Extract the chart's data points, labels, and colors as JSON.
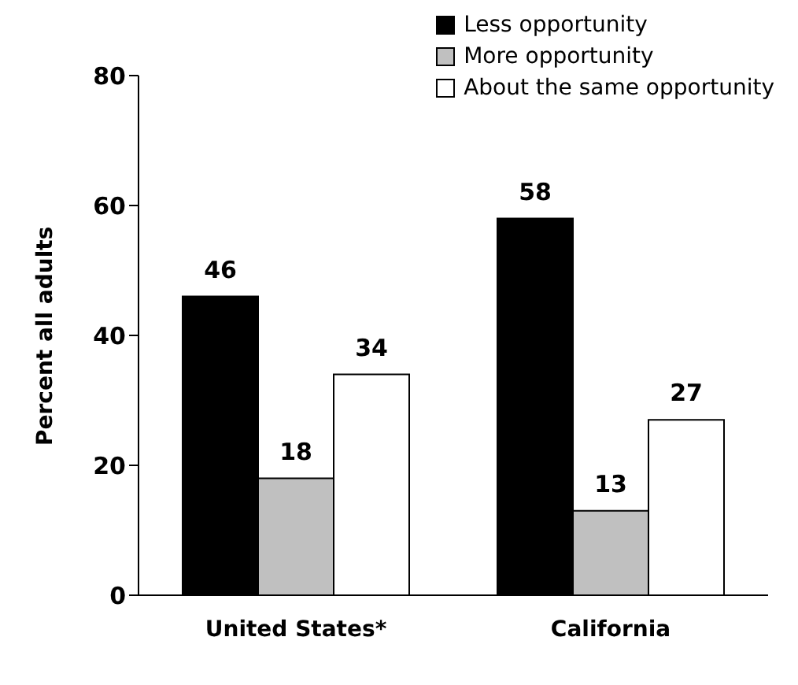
{
  "chart_data": {
    "type": "bar",
    "ylabel": "Percent all adults",
    "categories": [
      "United States*",
      "California"
    ],
    "series": [
      {
        "name": "Less opportunity",
        "color": "#000000",
        "values": [
          46,
          58
        ]
      },
      {
        "name": "More opportunity",
        "color": "#c0c0c0",
        "values": [
          18,
          13
        ]
      },
      {
        "name": "About the same opportunity",
        "color": "#ffffff",
        "values": [
          34,
          27
        ]
      }
    ],
    "ylim": [
      0,
      80
    ],
    "yticks": [
      0,
      20,
      40,
      60,
      80
    ],
    "legend": "top right",
    "data_labels": true
  }
}
